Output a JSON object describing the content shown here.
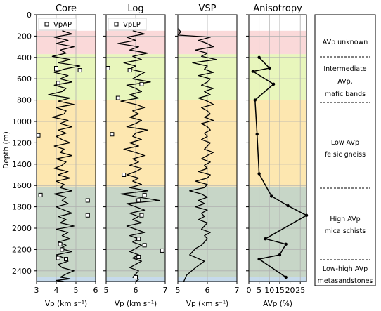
{
  "chart_data": [
    {
      "type": "line",
      "title": "Core",
      "xlabel": "Vp (km s⁻¹)",
      "ylabel": "Depth (m)",
      "xlim": [
        3,
        6
      ],
      "ylim": [
        2500,
        0
      ],
      "xticks": [
        "3",
        "4",
        "5",
        "6"
      ],
      "yticks": [
        "0",
        "200",
        "400",
        "600",
        "800",
        "1000",
        "1200",
        "1400",
        "1600",
        "1800",
        "2000",
        "2200",
        "2400"
      ],
      "grid": true,
      "legend": "top-left",
      "series": [
        {
          "name": "",
          "style": "line",
          "x": [
            4.3,
            4.8,
            3.9,
            4.6,
            4.0,
            4.9,
            4.2,
            4.5,
            3.8,
            4.7,
            4.1,
            5.2,
            4.4,
            3.9,
            4.6,
            4.2,
            4.8,
            3.9,
            4.5,
            4.3,
            3.6,
            4.7,
            4.1,
            4.9,
            4.0,
            4.5,
            4.4,
            3.8,
            4.6,
            4.2,
            4.8,
            4.1,
            4.5,
            4.0,
            4.3,
            4.7,
            3.9,
            4.4,
            4.2,
            4.8,
            4.0,
            4.5,
            4.3,
            3.9,
            4.6,
            4.1,
            4.7,
            4.0,
            4.4,
            4.2,
            4.8,
            3.9,
            4.5,
            4.3,
            4.6,
            4.0,
            4.4,
            4.8,
            4.1,
            4.5,
            4.2,
            4.9,
            4.0,
            4.6,
            4.3,
            4.7,
            4.1,
            4.5,
            4.2,
            4.8,
            4.0,
            4.4,
            4.6,
            4.1,
            4.3,
            4.9,
            4.5,
            4.2,
            4.7,
            4.0,
            4.4
          ],
          "y": [
            150,
            180,
            210,
            240,
            270,
            300,
            330,
            360,
            390,
            420,
            450,
            480,
            510,
            540,
            570,
            600,
            630,
            660,
            690,
            720,
            750,
            780,
            810,
            840,
            870,
            900,
            930,
            960,
            990,
            1020,
            1050,
            1080,
            1110,
            1140,
            1170,
            1200,
            1230,
            1260,
            1290,
            1320,
            1350,
            1380,
            1410,
            1440,
            1470,
            1500,
            1530,
            1560,
            1590,
            1620,
            1650,
            1680,
            1710,
            1740,
            1770,
            1800,
            1830,
            1860,
            1890,
            1920,
            1950,
            1980,
            2010,
            2040,
            2070,
            2100,
            2130,
            2160,
            2190,
            2220,
            2250,
            2280,
            2310,
            2340,
            2370,
            2400,
            2430,
            2460,
            2475,
            2490,
            2500
          ]
        },
        {
          "name": "VpAP",
          "style": "square",
          "x": [
            4.0,
            5.2,
            4.1,
            4.0,
            3.0,
            3.2,
            5.6,
            5.6,
            4.2,
            4.3,
            4.5,
            4.1
          ],
          "y": [
            510,
            520,
            640,
            500,
            1130,
            1690,
            1740,
            1880,
            2150,
            2200,
            2290,
            2280
          ]
        }
      ]
    },
    {
      "type": "line",
      "title": "Log",
      "xlabel": "Vp (km s⁻¹)",
      "xlim": [
        5,
        7
      ],
      "ylim": [
        2500,
        0
      ],
      "xticks": [
        "5",
        "6",
        "7"
      ],
      "grid": true,
      "legend": "top-left",
      "series": [
        {
          "name": "",
          "style": "line",
          "x": [
            5.9,
            6.3,
            5.7,
            6.0,
            5.4,
            6.1,
            5.8,
            6.4,
            5.9,
            6.2,
            5.6,
            6.0,
            5.8,
            6.3,
            6.1,
            5.9,
            6.5,
            5.7,
            6.0,
            6.2,
            5.8,
            6.1,
            5.5,
            6.0,
            6.3,
            5.9,
            6.1,
            5.8,
            6.2,
            6.0,
            5.7,
            6.4,
            6.0,
            5.9,
            6.2,
            5.8,
            6.1,
            5.6,
            6.0,
            6.3,
            5.9,
            6.1,
            5.8,
            6.2,
            6.0,
            5.7,
            6.1,
            5.9,
            6.2,
            5.8,
            6.4,
            5.5,
            6.1,
            6.8,
            5.7,
            6.0,
            6.3,
            5.8,
            6.1,
            5.9,
            6.2,
            5.7,
            6.0,
            6.3,
            5.8,
            6.1,
            5.9,
            6.2,
            6.0,
            5.8,
            6.1,
            5.9,
            6.2,
            6.0,
            5.8,
            6.1,
            6.0,
            5.9,
            6.1,
            6.0
          ],
          "y": [
            150,
            180,
            210,
            240,
            270,
            300,
            330,
            360,
            390,
            420,
            450,
            480,
            510,
            540,
            570,
            600,
            630,
            660,
            690,
            720,
            750,
            780,
            810,
            840,
            870,
            900,
            930,
            960,
            990,
            1020,
            1050,
            1080,
            1110,
            1140,
            1170,
            1200,
            1230,
            1260,
            1290,
            1320,
            1350,
            1380,
            1410,
            1440,
            1470,
            1500,
            1530,
            1560,
            1590,
            1620,
            1650,
            1680,
            1710,
            1740,
            1770,
            1800,
            1830,
            1860,
            1890,
            1920,
            1950,
            1980,
            2010,
            2040,
            2070,
            2100,
            2130,
            2160,
            2190,
            2220,
            2250,
            2280,
            2310,
            2340,
            2370,
            2400,
            2430,
            2460,
            2480,
            2500
          ]
        },
        {
          "name": "VpLP",
          "style": "square",
          "x": [
            5.0,
            5.8,
            6.2,
            5.4,
            5.2,
            5.6,
            6.3,
            6.1,
            6.2,
            6.1,
            6.3,
            6.9,
            6.1,
            6.0
          ],
          "y": [
            500,
            520,
            650,
            780,
            1120,
            1500,
            1690,
            1740,
            1880,
            2100,
            2160,
            2210,
            2270,
            2460
          ]
        }
      ]
    },
    {
      "type": "line",
      "title": "VSP",
      "xlabel": "Vp (km s⁻¹)",
      "xlim": [
        5,
        7
      ],
      "ylim": [
        2500,
        0
      ],
      "xticks": [
        "5",
        "6",
        "7"
      ],
      "grid": true,
      "series": [
        {
          "name": "",
          "style": "line",
          "x": [
            5.0,
            5.1,
            5.0,
            6.1,
            5.7,
            6.0,
            6.2,
            5.6,
            6.0,
            5.8,
            6.3,
            5.5,
            6.0,
            5.9,
            6.2,
            5.7,
            6.1,
            6.0,
            5.8,
            6.2,
            5.9,
            6.1,
            5.7,
            6.0,
            6.2,
            5.8,
            6.0,
            6.1,
            5.9,
            6.2,
            5.8,
            6.0,
            6.1,
            5.9,
            6.0,
            5.8,
            6.1,
            6.0,
            5.9,
            6.2,
            6.0,
            5.8,
            6.1,
            5.9,
            6.0,
            5.7,
            6.1,
            6.0,
            5.6,
            6.0,
            5.9,
            5.4,
            5.8,
            6.0,
            5.7,
            5.9,
            5.6,
            6.0,
            5.8,
            5.9,
            5.7,
            6.0,
            5.9,
            5.8,
            6.1,
            5.9,
            6.0,
            5.9,
            5.8,
            5.6,
            5.4,
            5.9,
            5.6,
            5.3,
            5.2
          ],
          "y": [
            130,
            160,
            190,
            210,
            240,
            270,
            300,
            330,
            360,
            390,
            420,
            450,
            480,
            510,
            540,
            570,
            600,
            630,
            660,
            690,
            720,
            750,
            780,
            810,
            840,
            870,
            900,
            930,
            960,
            990,
            1020,
            1050,
            1080,
            1110,
            1140,
            1170,
            1200,
            1230,
            1260,
            1290,
            1320,
            1350,
            1380,
            1410,
            1440,
            1470,
            1500,
            1530,
            1560,
            1590,
            1620,
            1650,
            1680,
            1710,
            1740,
            1770,
            1800,
            1830,
            1860,
            1890,
            1920,
            1950,
            1980,
            2010,
            2040,
            2070,
            2100,
            2130,
            2160,
            2190,
            2250,
            2310,
            2370,
            2440,
            2500
          ]
        }
      ]
    },
    {
      "type": "line",
      "title": "Anisotropy",
      "xlabel": "AVp (%)",
      "xlim": [
        0,
        28
      ],
      "ylim": [
        2500,
        0
      ],
      "xticks": [
        "0",
        "5",
        "10",
        "15",
        "20",
        "25"
      ],
      "grid": true,
      "series": [
        {
          "name": "",
          "style": "line-markers",
          "x": [
            5,
            10,
            2,
            12,
            3,
            4,
            5,
            11,
            19,
            28,
            8,
            18,
            15,
            5,
            18
          ],
          "y": [
            400,
            500,
            530,
            650,
            800,
            1120,
            1490,
            1700,
            1790,
            1880,
            2100,
            2150,
            2250,
            2290,
            2460
          ]
        }
      ]
    }
  ],
  "bands": {
    "colors": [
      "#f9d2d2",
      "#e4f5b0",
      "#fde3a2",
      "#bdcfbd",
      "#bcd3e8"
    ],
    "depths": [
      [
        150,
        370
      ],
      [
        370,
        800
      ],
      [
        800,
        1610
      ],
      [
        1610,
        2460
      ],
      [
        2460,
        2500
      ]
    ]
  },
  "interpretation": {
    "units": [
      {
        "lines": [
          "AVp unknown"
        ]
      },
      {
        "lines": [
          "Intermediate",
          "AVp,",
          "mafic bands"
        ]
      },
      {
        "lines": [
          "Low AVp",
          "felsic gneiss"
        ]
      },
      {
        "lines": [
          "High AVp",
          "mica schists"
        ]
      },
      {
        "lines": [
          "Low-high AVp",
          "metasandstones"
        ]
      }
    ]
  }
}
